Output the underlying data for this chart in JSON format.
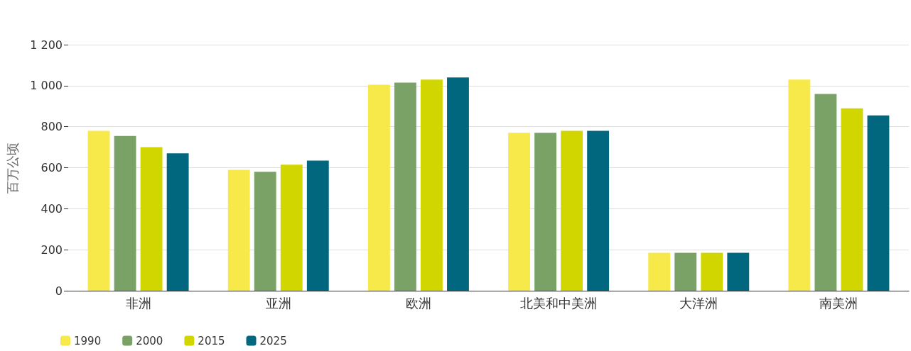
{
  "chart_data": {
    "type": "bar",
    "ylabel": "百万公顷",
    "categories": [
      "非洲",
      "亚洲",
      "欧洲",
      "北美和中美洲",
      "大洋洲",
      "南美洲"
    ],
    "series": [
      {
        "name": "1990",
        "color": "#f8e94a",
        "values": [
          780,
          590,
          1005,
          770,
          185,
          1030
        ]
      },
      {
        "name": "2000",
        "color": "#7aa267",
        "values": [
          755,
          580,
          1015,
          770,
          185,
          960
        ]
      },
      {
        "name": "2015",
        "color": "#d2d600",
        "values": [
          700,
          615,
          1030,
          780,
          185,
          890
        ]
      },
      {
        "name": "2025",
        "color": "#00677f",
        "values": [
          670,
          635,
          1040,
          780,
          185,
          855
        ]
      }
    ],
    "ylim": [
      0,
      1200
    ],
    "yticks": [
      0,
      200,
      400,
      600,
      800,
      {
        "value": 1000,
        "label": "1 000"
      },
      {
        "value": 1200,
        "label": "1 200"
      }
    ],
    "grid": "y",
    "legend": "bottom left"
  }
}
